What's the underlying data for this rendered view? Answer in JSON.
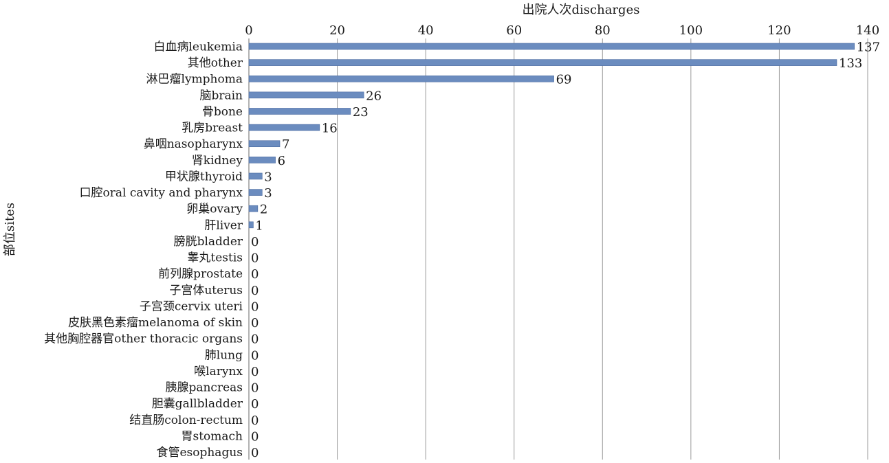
{
  "chart_data": {
    "type": "bar",
    "orientation": "horizontal",
    "xlabel": "出院人次discharges",
    "ylabel": "部位sites",
    "xlim": [
      0,
      140
    ],
    "xticks": [
      0,
      20,
      40,
      60,
      80,
      100,
      120,
      140
    ],
    "x_axis_position": "top",
    "grid": true,
    "bar_color": "#6b8cbf",
    "categories": [
      "白血病leukemia",
      "其他other",
      "淋巴瘤lymphoma",
      "脑brain",
      "骨bone",
      "乳房breast",
      "鼻咽nasopharynx",
      "肾kidney",
      "甲状腺thyroid",
      "口腔oral cavity and pharynx",
      "卵巢ovary",
      "肝liver",
      "膀胱bladder",
      "睾丸testis",
      "前列腺prostate",
      "子宫体uterus",
      "子宫颈cervix uteri",
      "皮肤黑色素瘤melanoma of skin",
      "其他胸腔器官other thoracic organs",
      "肺lung",
      "喉larynx",
      "胰腺pancreas",
      "胆囊gallbladder",
      "结直肠colon-rectum",
      "胃stomach",
      "食管esophagus"
    ],
    "values": [
      137,
      133,
      69,
      26,
      23,
      16,
      7,
      6,
      3,
      3,
      2,
      1,
      0,
      0,
      0,
      0,
      0,
      0,
      0,
      0,
      0,
      0,
      0,
      0,
      0,
      0
    ]
  }
}
